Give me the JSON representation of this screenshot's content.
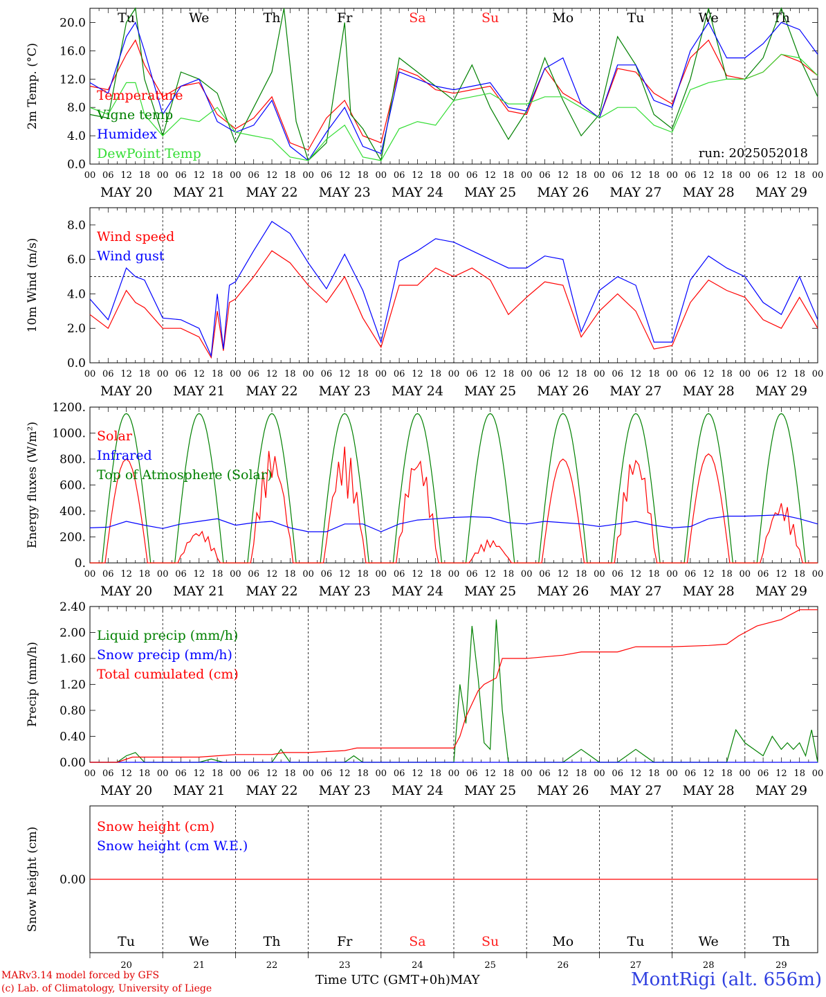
{
  "colors": {
    "red": "#ff0000",
    "green": "#008000",
    "blue": "#0000ff",
    "light_green": "#33dd33",
    "sa_su_day": "#ff2020",
    "station": "#3040e0"
  },
  "footer": {
    "model_line": "MARv3.14 model forced by GFS",
    "lab_line": "(c) Lab. of Climatology, University of Liege",
    "time_label": "Time UTC (GMT+0h)",
    "month_label": "MAY",
    "station_label": "MontRigi (alt. 656m)"
  },
  "chart_data": [
    {
      "type": "line",
      "ylabel": "2m Temp. (°C)",
      "ylim": [
        0,
        22
      ],
      "yticks": [
        "0.0",
        "4.0",
        "8.0",
        "12.0",
        "16.0",
        "20.0"
      ],
      "annotation": "run: 2025052018",
      "days": [
        "Tu",
        "We",
        "Th",
        "Fr",
        "Sa",
        "Su",
        "Mo",
        "Tu",
        "We",
        "Th"
      ],
      "dates": [
        "MAY 20",
        "MAY 21",
        "MAY 22",
        "MAY 23",
        "MAY 24",
        "MAY 25",
        "MAY 26",
        "MAY 27",
        "MAY 28",
        "MAY 29"
      ],
      "hour_labels": [
        "00",
        "06",
        "12",
        "18"
      ],
      "x_unit": "hours since MAY 20 00 UTC",
      "series": [
        {
          "name": "Temperature",
          "color": "red",
          "x": [
            0,
            6,
            12,
            15,
            18,
            24,
            30,
            36,
            42,
            48,
            54,
            60,
            66,
            72,
            78,
            84,
            90,
            96,
            102,
            108,
            114,
            120,
            126,
            132,
            138,
            144,
            150,
            156,
            162,
            168,
            174,
            180,
            186,
            192,
            198,
            204,
            210,
            216,
            222,
            228,
            234,
            240
          ],
          "y": [
            11,
            10.5,
            15.5,
            17.5,
            14,
            9.5,
            11,
            11.5,
            7,
            5,
            6.5,
            9.5,
            3,
            2,
            6.5,
            9,
            4,
            3,
            13.5,
            12.5,
            10.5,
            10,
            10.5,
            11,
            7.5,
            7,
            13.5,
            10,
            8.5,
            6.5,
            13.5,
            13,
            10,
            8.5,
            15,
            17.5,
            12.5,
            12,
            13,
            15.5,
            14.5,
            12.5
          ]
        },
        {
          "name": "Vigne temp",
          "color": "green",
          "x": [
            0,
            6,
            12,
            15,
            18,
            24,
            30,
            36,
            42,
            48,
            54,
            60,
            64,
            68,
            72,
            78,
            84,
            86,
            90,
            96,
            102,
            108,
            114,
            120,
            126,
            132,
            138,
            144,
            150,
            156,
            162,
            168,
            174,
            180,
            186,
            192,
            198,
            204,
            210,
            216,
            222,
            228,
            234,
            240
          ],
          "y": [
            7,
            6.5,
            20,
            22,
            12,
            4,
            13,
            12,
            10,
            3,
            8,
            13,
            22,
            6,
            0.5,
            3,
            20,
            7,
            5,
            0.5,
            15,
            13,
            11,
            9,
            14,
            8,
            3.5,
            7.5,
            15,
            9,
            4,
            7,
            18,
            14,
            7,
            5,
            12,
            22,
            12,
            12,
            15,
            22,
            15,
            9.5
          ]
        },
        {
          "name": "Humidex",
          "color": "blue",
          "x": [
            0,
            6,
            12,
            15,
            18,
            24,
            30,
            36,
            42,
            48,
            54,
            60,
            66,
            72,
            78,
            84,
            90,
            96,
            102,
            108,
            114,
            120,
            126,
            132,
            138,
            144,
            150,
            156,
            162,
            168,
            174,
            180,
            186,
            192,
            198,
            204,
            210,
            216,
            222,
            228,
            234,
            240
          ],
          "y": [
            11.5,
            10,
            18,
            20,
            16,
            7,
            11,
            12,
            6,
            4.5,
            5.5,
            9,
            2.5,
            0.5,
            4.5,
            8,
            2.5,
            1.5,
            13,
            12,
            11,
            10.5,
            11,
            11.5,
            8,
            7.5,
            13.5,
            15,
            8.5,
            6.5,
            14,
            14,
            9,
            8,
            16,
            20,
            15,
            15,
            17,
            20,
            19,
            15.5
          ]
        },
        {
          "name": "DewPoint Temp",
          "color": "light_green",
          "x": [
            0,
            6,
            12,
            15,
            18,
            24,
            30,
            36,
            42,
            48,
            54,
            60,
            66,
            72,
            78,
            84,
            90,
            96,
            102,
            108,
            114,
            120,
            126,
            132,
            138,
            144,
            150,
            156,
            162,
            168,
            174,
            180,
            186,
            192,
            198,
            204,
            210,
            216,
            222,
            228,
            234,
            240
          ],
          "y": [
            8,
            7,
            11.5,
            11.5,
            7,
            4,
            6.5,
            6,
            8,
            4.5,
            4,
            3.5,
            1,
            0.5,
            3.5,
            5.5,
            1,
            0.5,
            5,
            6,
            5.5,
            9,
            9.5,
            10,
            8.5,
            8.5,
            9.5,
            9.5,
            8,
            6.5,
            8,
            8,
            5.5,
            4.5,
            10.5,
            11.5,
            12,
            12,
            13,
            15.5,
            15,
            12.5
          ]
        }
      ]
    },
    {
      "type": "line",
      "ylabel": "10m Wind (m/s)",
      "ylim": [
        0,
        9
      ],
      "yticks": [
        "0.0",
        "2.0",
        "4.0",
        "6.0",
        "8.0"
      ],
      "reference_line": 5,
      "days": [
        "Tu",
        "We",
        "Th",
        "Fr",
        "Sa",
        "Su",
        "Mo",
        "Tu",
        "We",
        "Th"
      ],
      "dates": [
        "MAY 20",
        "MAY 21",
        "MAY 22",
        "MAY 23",
        "MAY 24",
        "MAY 25",
        "MAY 26",
        "MAY 27",
        "MAY 28",
        "MAY 29"
      ],
      "hour_labels": [
        "00",
        "06",
        "12",
        "18"
      ],
      "series": [
        {
          "name": "Wind speed",
          "color": "red",
          "x": [
            0,
            6,
            12,
            15,
            18,
            24,
            30,
            36,
            40,
            42,
            44,
            46,
            48,
            54,
            60,
            66,
            72,
            78,
            84,
            90,
            96,
            102,
            108,
            114,
            120,
            126,
            132,
            138,
            144,
            150,
            156,
            162,
            168,
            174,
            180,
            186,
            192,
            198,
            204,
            210,
            216,
            222,
            228,
            234,
            240
          ],
          "y": [
            2.8,
            2,
            4.2,
            3.5,
            3.2,
            2,
            2,
            1.5,
            0.3,
            3,
            0.7,
            3.5,
            3.7,
            5,
            6.5,
            5.8,
            4.5,
            3.5,
            5,
            2.6,
            0.9,
            4.5,
            4.5,
            5.5,
            5,
            5.5,
            4.8,
            2.8,
            3.8,
            4.7,
            4.5,
            1.5,
            3,
            4,
            3,
            0.8,
            1,
            3.5,
            4.8,
            4.2,
            3.8,
            2.5,
            2,
            3.8,
            2
          ]
        },
        {
          "name": "Wind gust",
          "color": "blue",
          "x": [
            0,
            6,
            12,
            15,
            18,
            24,
            30,
            36,
            40,
            42,
            44,
            46,
            48,
            54,
            60,
            66,
            72,
            78,
            84,
            90,
            96,
            102,
            108,
            114,
            120,
            126,
            132,
            138,
            144,
            150,
            156,
            162,
            168,
            174,
            180,
            186,
            192,
            198,
            204,
            210,
            216,
            222,
            228,
            234,
            240
          ],
          "y": [
            3.7,
            2.5,
            5.5,
            5,
            4.8,
            2.6,
            2.5,
            2,
            0.4,
            4,
            0.8,
            4.5,
            4.7,
            6.5,
            8.2,
            7.5,
            5.8,
            4.3,
            6.3,
            4.2,
            1.2,
            5.9,
            6.5,
            7.2,
            7,
            6.5,
            6,
            5.5,
            5.5,
            6.2,
            6,
            1.8,
            4.2,
            5,
            4.5,
            1.2,
            1.2,
            4.8,
            6.2,
            5.5,
            5,
            3.5,
            2.8,
            5,
            2.5
          ]
        }
      ]
    },
    {
      "type": "line",
      "ylabel": "Energy fluxes (W/m²)",
      "ylim": [
        0,
        1200
      ],
      "yticks": [
        "0.",
        "200.",
        "400.",
        "600.",
        "800.",
        "1000.",
        "1200."
      ],
      "days": [
        "Tu",
        "We",
        "Th",
        "Fr",
        "Sa",
        "Su",
        "Mo",
        "Tu",
        "We",
        "Th"
      ],
      "dates": [
        "MAY 20",
        "MAY 21",
        "MAY 22",
        "MAY 23",
        "MAY 24",
        "MAY 25",
        "MAY 26",
        "MAY 27",
        "MAY 28",
        "MAY 29"
      ],
      "hour_labels": [
        "00",
        "06",
        "12",
        "18"
      ],
      "toa_peak": 1150,
      "series": [
        {
          "name": "Solar",
          "color": "red",
          "daily_peaks": [
            800,
            260,
            900,
            900,
            870,
            180,
            800,
            880,
            840,
            480
          ]
        },
        {
          "name": "Infrared",
          "color": "blue",
          "x": [
            0,
            6,
            12,
            18,
            24,
            30,
            36,
            42,
            48,
            54,
            60,
            66,
            72,
            78,
            84,
            90,
            96,
            102,
            108,
            114,
            120,
            126,
            132,
            138,
            144,
            150,
            156,
            162,
            168,
            174,
            180,
            186,
            192,
            198,
            204,
            210,
            216,
            222,
            228,
            234,
            240
          ],
          "y": [
            270,
            275,
            320,
            290,
            265,
            300,
            320,
            340,
            290,
            310,
            320,
            270,
            240,
            240,
            300,
            300,
            240,
            300,
            330,
            340,
            350,
            355,
            350,
            310,
            300,
            320,
            310,
            300,
            280,
            300,
            320,
            290,
            270,
            280,
            340,
            360,
            360,
            365,
            370,
            340,
            300
          ]
        },
        {
          "name": "Top of Atmosphere (Solar)",
          "color": "green"
        }
      ]
    },
    {
      "type": "line",
      "ylabel": "Precip (mm/h)",
      "ylim": [
        0,
        2.4
      ],
      "yticks": [
        "0.00",
        "0.40",
        "0.80",
        "1.20",
        "1.60",
        "2.00",
        "2.40"
      ],
      "days": [
        "Tu",
        "We",
        "Th",
        "Fr",
        "Sa",
        "Su",
        "Mo",
        "Tu",
        "We",
        "Th"
      ],
      "dates": [
        "MAY 20",
        "MAY 21",
        "MAY 22",
        "MAY 23",
        "MAY 24",
        "MAY 25",
        "MAY 26",
        "MAY 27",
        "MAY 28",
        "MAY 29"
      ],
      "hour_labels": [
        "00",
        "06",
        "12",
        "18"
      ],
      "series": [
        {
          "name": "Liquid precip (mm/h)",
          "color": "green",
          "x": [
            0,
            9,
            12,
            15,
            18,
            24,
            36,
            40,
            44,
            48,
            60,
            63,
            66,
            84,
            87,
            90,
            120,
            122,
            124,
            126,
            128,
            130,
            132,
            134,
            136,
            138,
            140,
            142,
            144,
            156,
            162,
            165,
            168,
            174,
            180,
            183,
            186,
            204,
            210,
            213,
            216,
            222,
            225,
            228,
            230,
            232,
            234,
            236,
            238,
            240
          ],
          "y": [
            0,
            0,
            0.1,
            0.15,
            0,
            0,
            0,
            0.05,
            0,
            0,
            0,
            0.2,
            0,
            0,
            0.1,
            0,
            0,
            1.2,
            0.6,
            2.1,
            1.3,
            0.3,
            0.2,
            2.2,
            0.8,
            0,
            0,
            0,
            0,
            0,
            0.2,
            0.1,
            0,
            0,
            0.2,
            0.1,
            0,
            0,
            0,
            0.5,
            0.3,
            0.1,
            0.4,
            0.2,
            0.3,
            0.2,
            0.3,
            0.1,
            0.5,
            0
          ]
        },
        {
          "name": "Snow precip (mm/h)",
          "color": "blue",
          "x": [
            0,
            240
          ],
          "y": [
            0,
            0
          ]
        },
        {
          "name": "Total cumulated (cm)",
          "color": "red",
          "x": [
            0,
            9,
            14,
            24,
            36,
            42,
            48,
            60,
            64,
            72,
            84,
            88,
            96,
            108,
            120,
            122,
            124,
            126,
            128,
            130,
            134,
            136,
            144,
            156,
            162,
            168,
            174,
            180,
            186,
            192,
            204,
            210,
            214,
            220,
            228,
            234,
            240
          ],
          "y": [
            0,
            0,
            0.08,
            0.08,
            0.08,
            0.1,
            0.12,
            0.12,
            0.15,
            0.15,
            0.18,
            0.22,
            0.22,
            0.22,
            0.22,
            0.4,
            0.7,
            0.9,
            1.1,
            1.2,
            1.3,
            1.6,
            1.6,
            1.65,
            1.7,
            1.7,
            1.7,
            1.78,
            1.78,
            1.78,
            1.8,
            1.82,
            1.95,
            2.1,
            2.2,
            2.35,
            2.35
          ]
        }
      ]
    },
    {
      "type": "line",
      "ylabel": "Snow height (cm)",
      "ytick_value": "0.00",
      "days": [
        "Tu",
        "We",
        "Th",
        "Fr",
        "Sa",
        "Su",
        "Mo",
        "Tu",
        "We",
        "Th"
      ],
      "day_numbers": [
        "20",
        "21",
        "22",
        "23",
        "24",
        "25",
        "26",
        "27",
        "28",
        "29"
      ],
      "series": [
        {
          "name": "Snow height (cm)",
          "color": "red",
          "x": [
            0,
            240
          ],
          "y": [
            0,
            0
          ]
        },
        {
          "name": "Snow height (cm W.E.)",
          "color": "blue",
          "x": [
            0,
            240
          ],
          "y": [
            0,
            0
          ]
        }
      ]
    }
  ]
}
